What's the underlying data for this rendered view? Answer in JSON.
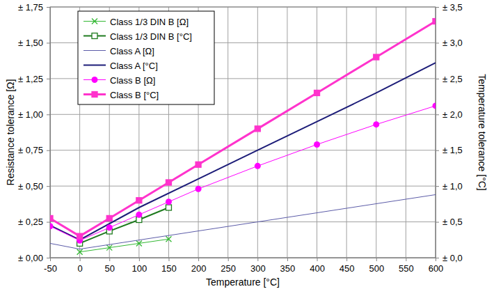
{
  "chart_data": {
    "type": "line",
    "x_label": "Temperature [°C]",
    "y_label": "Resistance tolerance [Ω]",
    "y2_label": "Temperature tolerance [°C]",
    "xlim": [
      -50,
      600
    ],
    "xticks": [
      -50,
      0,
      50,
      100,
      150,
      200,
      250,
      300,
      350,
      400,
      450,
      500,
      550,
      600
    ],
    "ylim": [
      0,
      1.75
    ],
    "yticks": [
      {
        "value": 0,
        "label": "± 0,00"
      },
      {
        "value": 0.25,
        "label": "± 0,25"
      },
      {
        "value": 0.5,
        "label": "± 0,50"
      },
      {
        "value": 0.75,
        "label": "± 0,75"
      },
      {
        "value": 1.0,
        "label": "± 1,00"
      },
      {
        "value": 1.25,
        "label": "± 1,25"
      },
      {
        "value": 1.5,
        "label": "± 1,50"
      },
      {
        "value": 1.75,
        "label": "± 1,75"
      }
    ],
    "y2lim": [
      0,
      3.5
    ],
    "y2ticks": [
      {
        "value": 0,
        "label": "± 0,0"
      },
      {
        "value": 0.5,
        "label": "± 0,5"
      },
      {
        "value": 1.0,
        "label": "± 1,0"
      },
      {
        "value": 1.5,
        "label": "± 1,5"
      },
      {
        "value": 2.0,
        "label": "± 2,0"
      },
      {
        "value": 2.5,
        "label": "± 2,5"
      },
      {
        "value": 3.0,
        "label": "± 3,0"
      },
      {
        "value": 3.5,
        "label": "± 3,5"
      }
    ],
    "grid": true,
    "legend": "upper left",
    "series": [
      {
        "name": "Class 1/3 DIN B [Ω]",
        "color": "#33b833",
        "marker": "x",
        "line_style": "solid",
        "x": [
          0,
          50,
          100,
          150
        ],
        "values": [
          0.04,
          0.07,
          0.1,
          0.13
        ]
      },
      {
        "name": "Class 1/3 DIN B [°C]",
        "color": "#1e7a1e",
        "marker": "square_open",
        "line_style": "solid",
        "axis": "y2",
        "x": [
          0,
          50,
          100,
          150
        ],
        "values": [
          0.2,
          0.37,
          0.53,
          0.7
        ]
      },
      {
        "name": "Class A [Ω]",
        "color": "#5c5ca8",
        "marker": "none",
        "line_style": "solid",
        "x": [
          -50,
          0,
          600
        ],
        "values": [
          0.1,
          0.06,
          0.44
        ]
      },
      {
        "name": "Class A [°C]",
        "color": "#1c1c78",
        "marker": "none",
        "line_style": "solid",
        "axis": "y2",
        "x": [
          -50,
          0,
          100,
          200,
          300,
          400,
          500,
          600
        ],
        "values": [
          0.45,
          0.25,
          0.7,
          1.1,
          1.5,
          1.9,
          2.3,
          2.72
        ]
      },
      {
        "name": "Class B [Ω]",
        "color": "#ff00ff",
        "marker": "circle",
        "line_style": "solid",
        "x": [
          -50,
          0,
          50,
          100,
          150,
          200,
          300,
          400,
          500,
          600
        ],
        "values": [
          0.22,
          0.12,
          0.21,
          0.3,
          0.39,
          0.48,
          0.64,
          0.79,
          0.93,
          1.06
        ]
      },
      {
        "name": "Class B [°C]",
        "color": "#ff33cc",
        "marker": "square",
        "line_style": "solid",
        "axis": "y2",
        "x": [
          -50,
          0,
          50,
          100,
          150,
          200,
          300,
          400,
          500,
          600
        ],
        "values": [
          0.55,
          0.3,
          0.55,
          0.8,
          1.05,
          1.3,
          1.8,
          2.3,
          2.8,
          3.3
        ]
      }
    ]
  }
}
